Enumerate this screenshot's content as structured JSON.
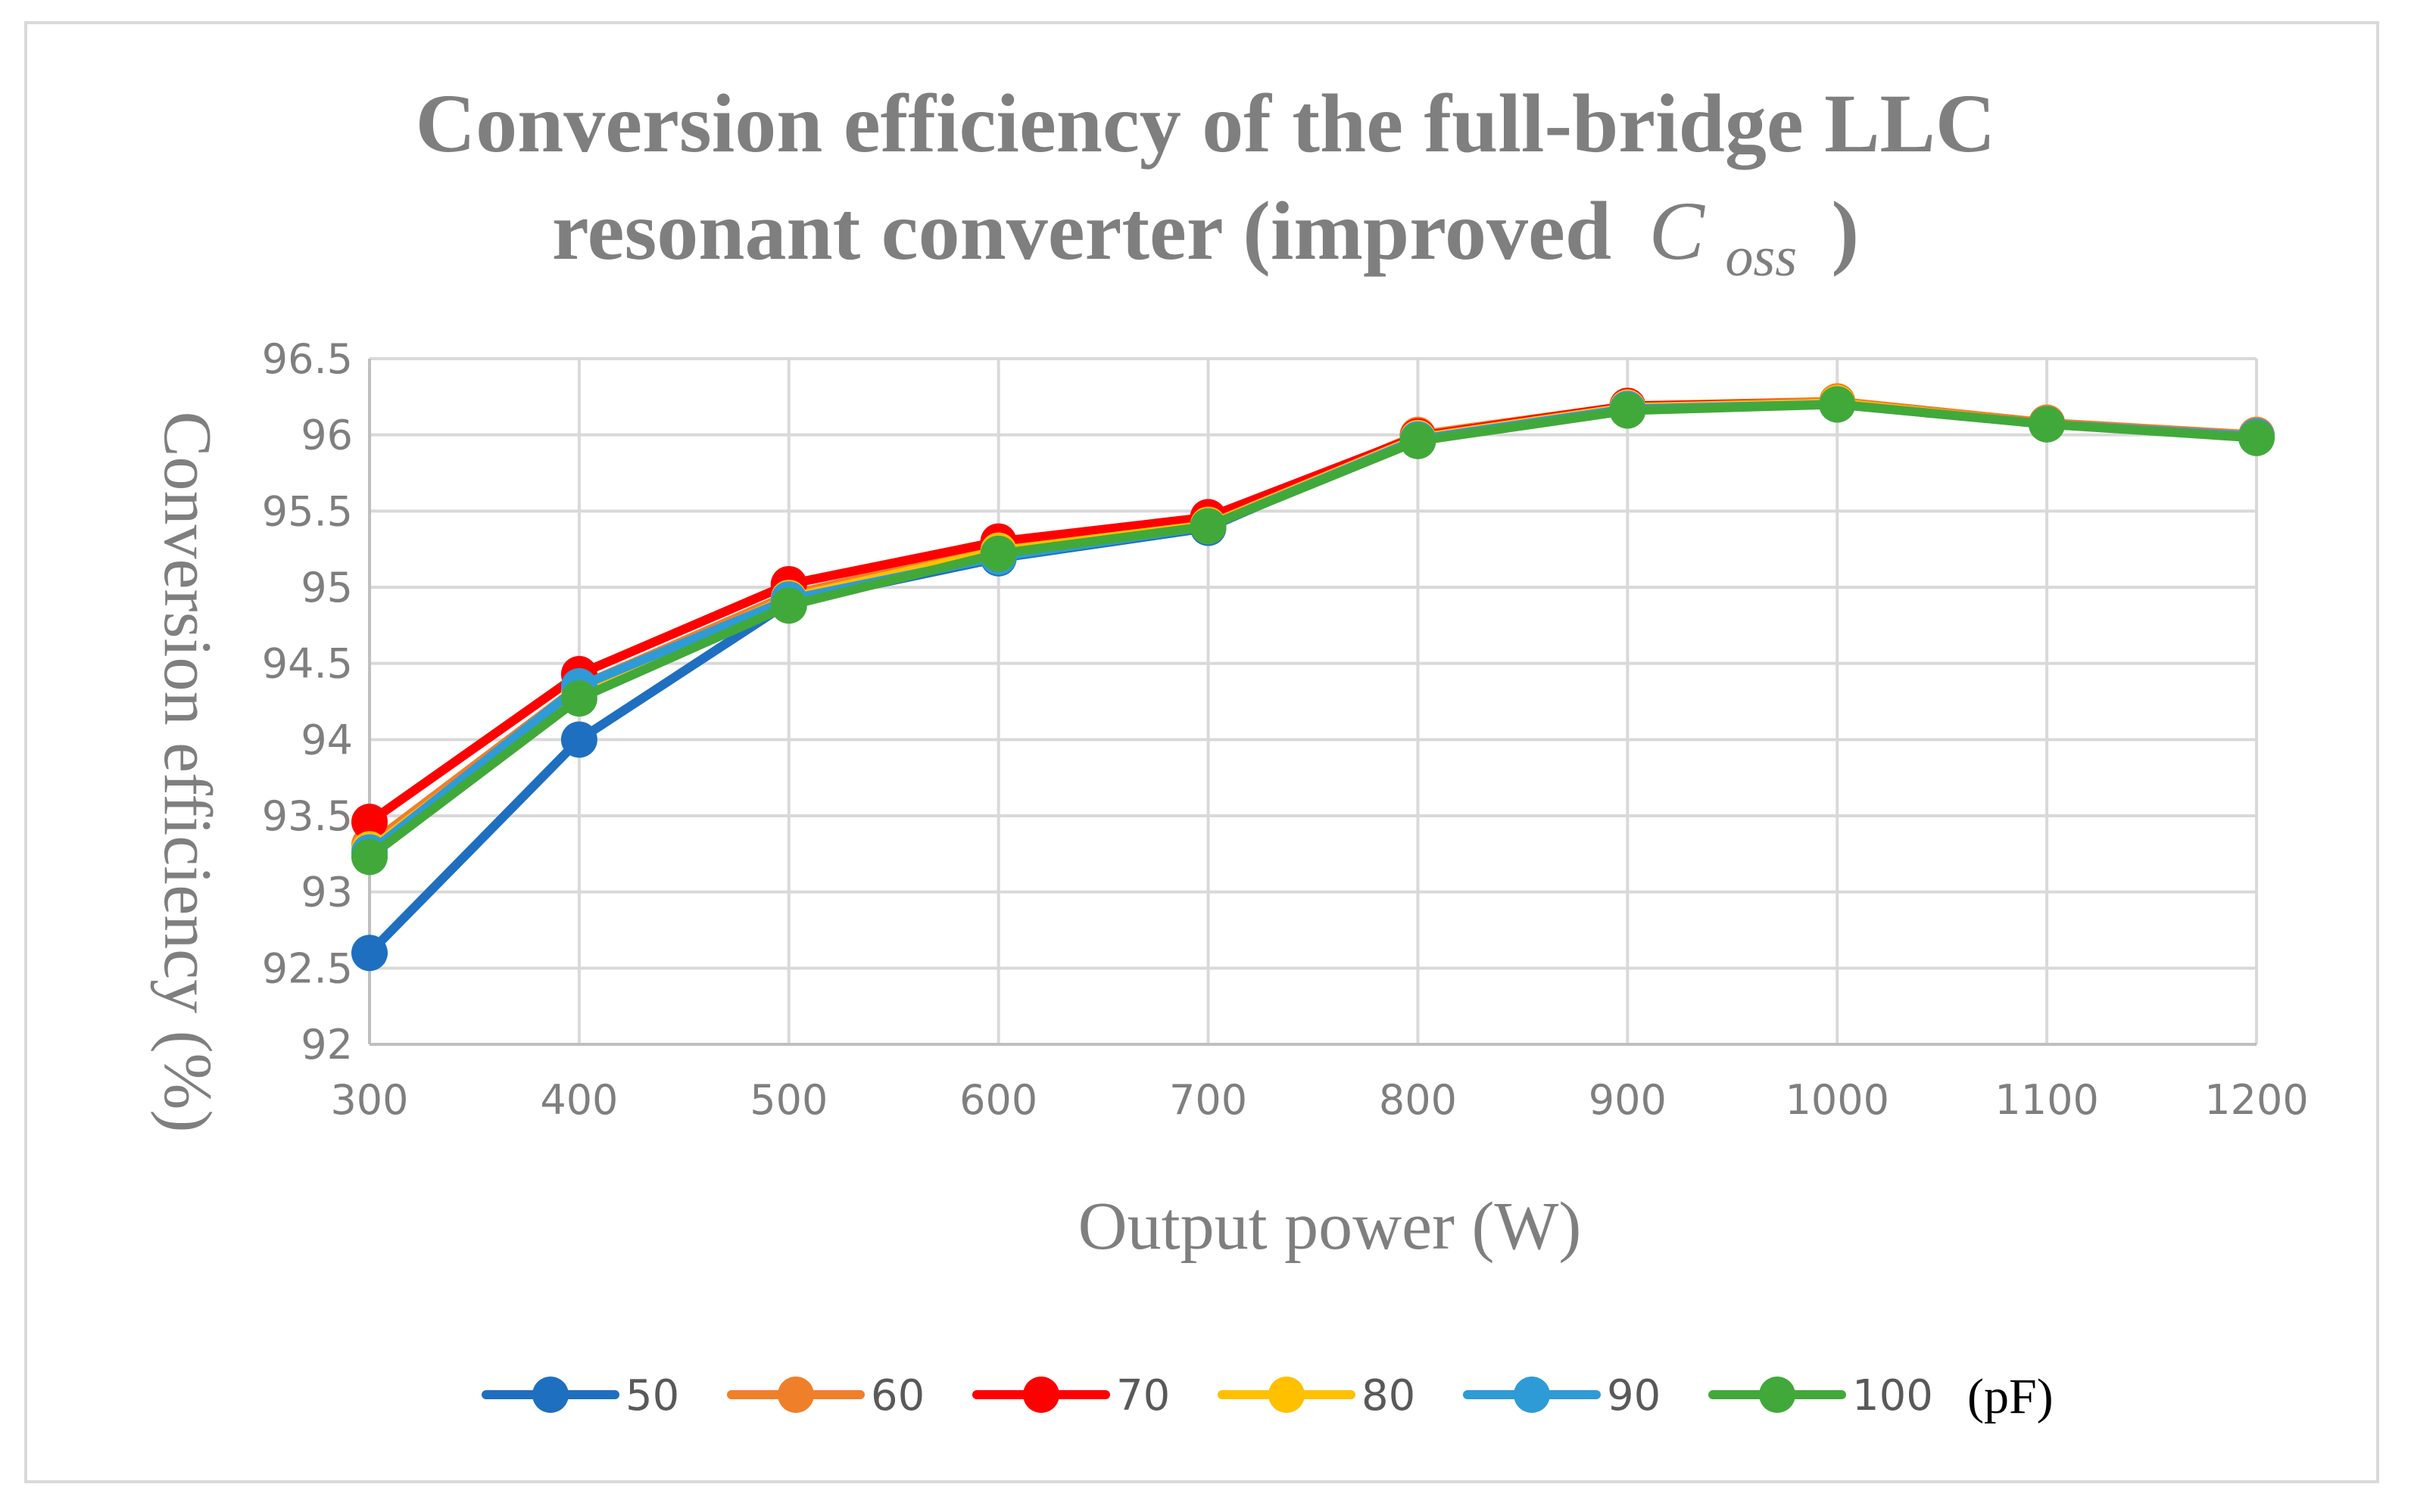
{
  "chart_data": {
    "type": "line",
    "title_line1": "Conversion efficiency of the full-bridge LLC",
    "title_line2_prefix": "resonant converter (improved",
    "title_symbol": "C",
    "title_subscript": "oss",
    "title_suffix": ")",
    "xlabel": "Output power (W)",
    "ylabel": "Conversion efficiency (%)",
    "x": [
      300,
      400,
      500,
      600,
      700,
      800,
      900,
      1000,
      1100,
      1200
    ],
    "x_tick_labels": [
      "300",
      "400",
      "500",
      "600",
      "700",
      "800",
      "900",
      "1000",
      "1100",
      "1200"
    ],
    "ylim": [
      92,
      96.5
    ],
    "y_ticks": [
      92,
      92.5,
      93,
      93.5,
      94,
      94.5,
      95,
      95.5,
      96,
      96.5
    ],
    "y_tick_labels": [
      "92",
      "92.5",
      "93",
      "93.5",
      "94",
      "94.5",
      "95",
      "95.5",
      "96",
      "96.5"
    ],
    "grid": true,
    "legend_position": "bottom",
    "legend_unit": "(pF)",
    "series": [
      {
        "name": "50",
        "color": "#1f6fc0",
        "values": [
          92.6,
          94.0,
          94.9,
          95.19,
          95.39,
          95.99,
          96.18,
          96.21,
          96.07,
          95.99
        ]
      },
      {
        "name": "60",
        "color": "#f07f2a",
        "values": [
          93.31,
          94.35,
          94.95,
          95.26,
          95.42,
          96.0,
          96.19,
          96.22,
          96.08,
          96.0
        ]
      },
      {
        "name": "70",
        "color": "#ff0000",
        "values": [
          93.46,
          94.43,
          95.02,
          95.3,
          95.46,
          95.99,
          96.19,
          96.21,
          96.07,
          95.99
        ]
      },
      {
        "name": "80",
        "color": "#ffc000",
        "values": [
          93.28,
          94.32,
          94.93,
          95.24,
          95.41,
          95.98,
          96.18,
          96.21,
          96.07,
          95.99
        ]
      },
      {
        "name": "90",
        "color": "#2e9bd6",
        "values": [
          93.26,
          94.35,
          94.92,
          95.2,
          95.4,
          95.97,
          96.17,
          96.2,
          96.07,
          95.99
        ]
      },
      {
        "name": "100",
        "color": "#41a93a",
        "values": [
          93.23,
          94.27,
          94.88,
          95.22,
          95.4,
          95.96,
          96.16,
          96.2,
          96.07,
          95.98
        ]
      }
    ]
  }
}
